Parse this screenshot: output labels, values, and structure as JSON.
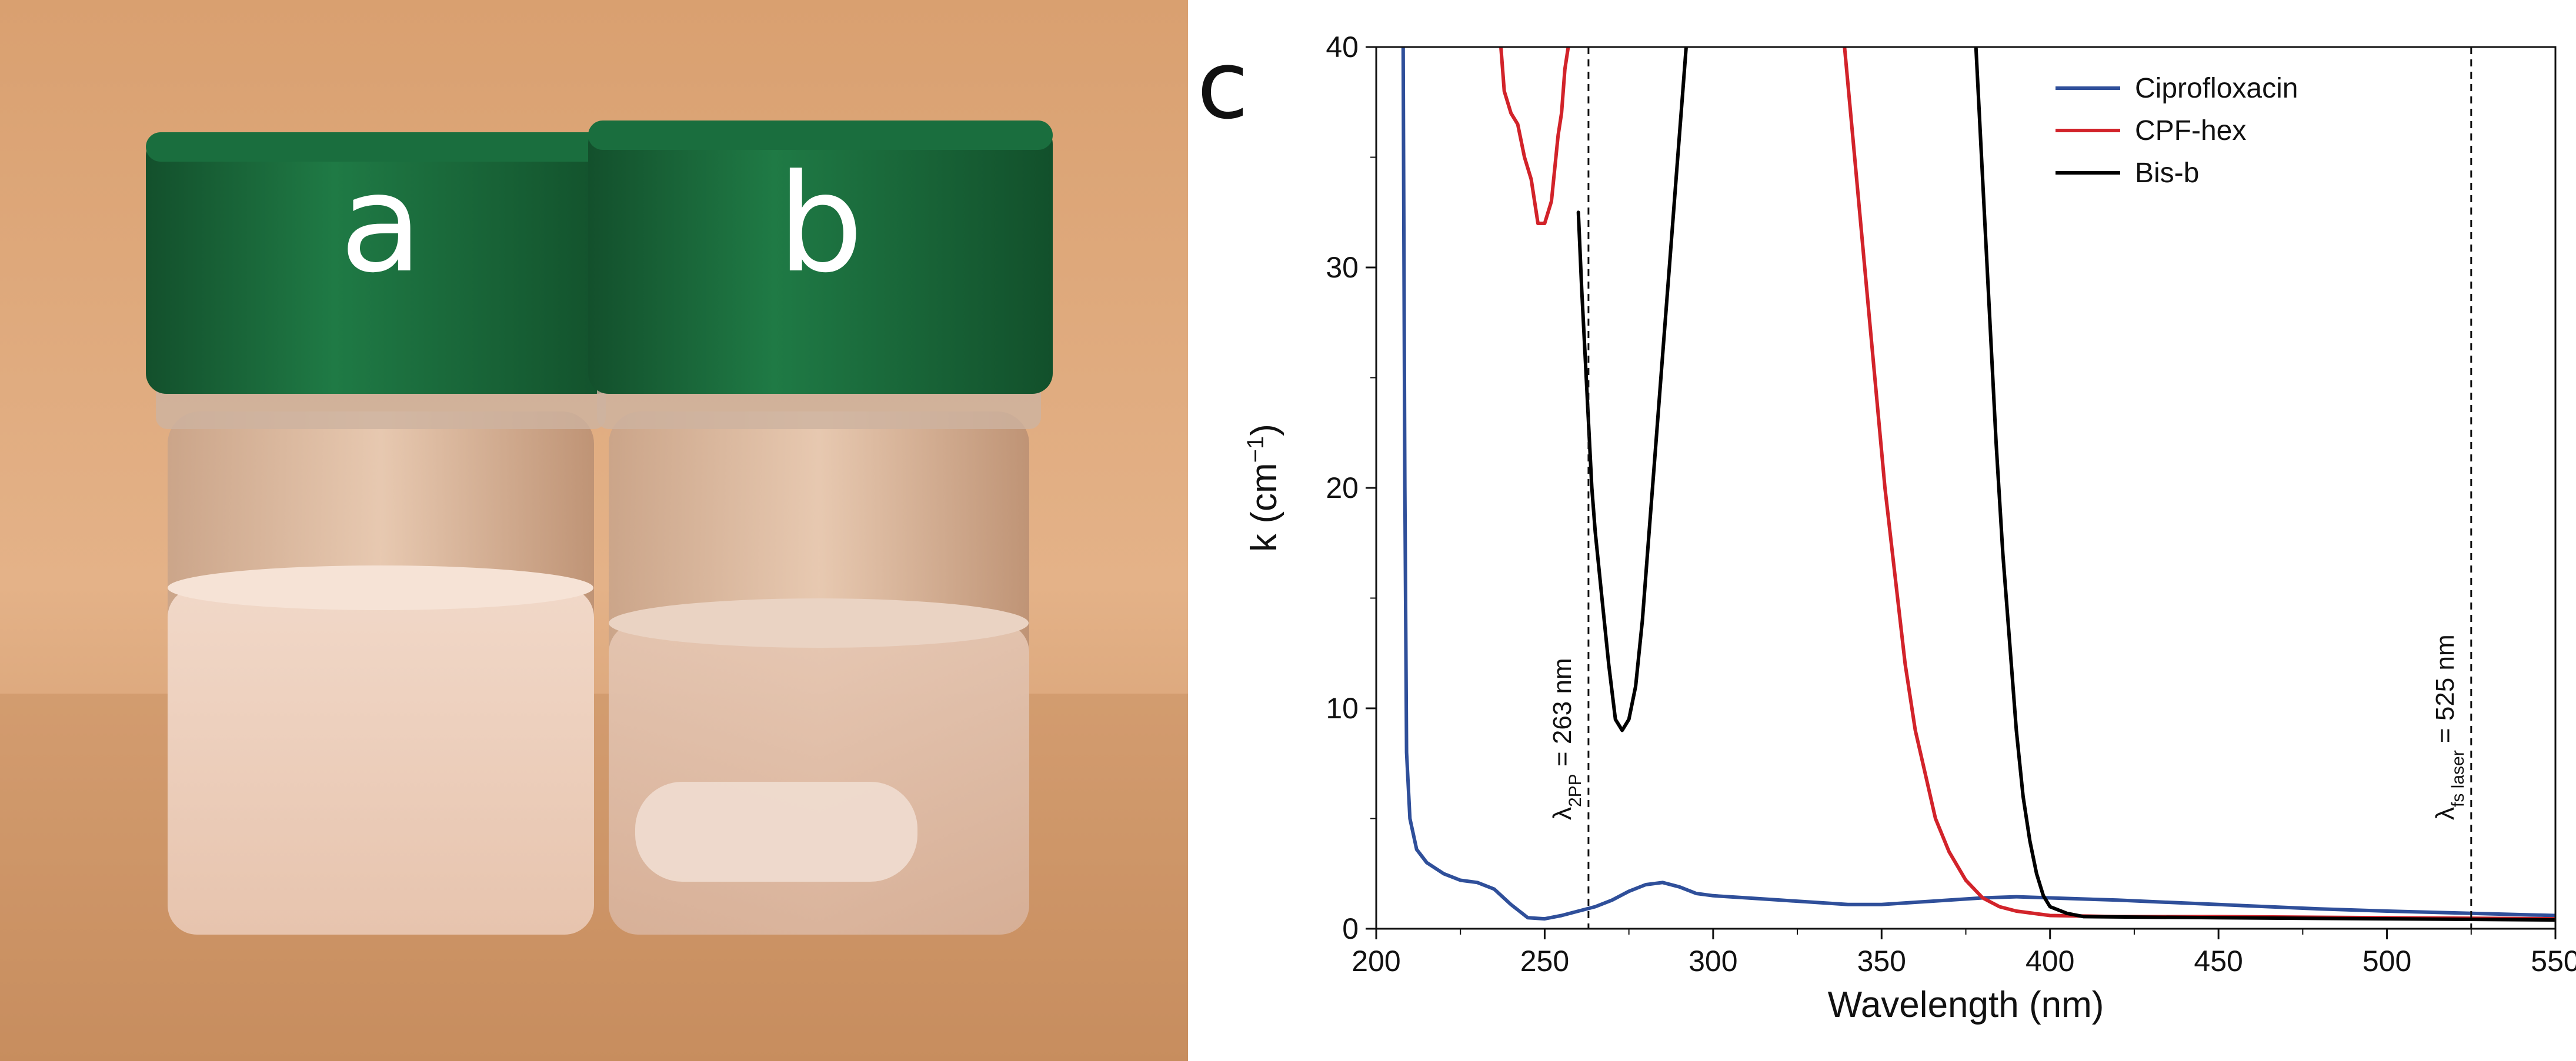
{
  "photo": {
    "vial_a_label": "a",
    "vial_b_label": "b"
  },
  "panel_label": "c",
  "colors": {
    "ciprofloxacin": "#2f4f9a",
    "cpf_hex": "#d2232a",
    "bis_b": "#000000",
    "cap": "#1c6b3d"
  },
  "chart_data": {
    "type": "line",
    "xlabel": "Wavelength (nm)",
    "ylabel_main": "k (cm",
    "ylabel_sup": "−1",
    "ylabel_close": ")",
    "xlim": [
      200,
      550
    ],
    "ylim": [
      0,
      40
    ],
    "xticks": [
      200,
      250,
      300,
      350,
      400,
      450,
      500,
      550
    ],
    "yticks": [
      0,
      10,
      20,
      30,
      40
    ],
    "legend_position": "top-right",
    "series": [
      {
        "name": "Ciprofloxacin",
        "color": "#2f4f9a",
        "points": [
          [
            208,
            40
          ],
          [
            208.5,
            20
          ],
          [
            209,
            8
          ],
          [
            210,
            5
          ],
          [
            212,
            3.6
          ],
          [
            215,
            3
          ],
          [
            220,
            2.5
          ],
          [
            225,
            2.2
          ],
          [
            230,
            2.1
          ],
          [
            235,
            1.8
          ],
          [
            240,
            1.1
          ],
          [
            245,
            0.5
          ],
          [
            250,
            0.45
          ],
          [
            255,
            0.6
          ],
          [
            260,
            0.8
          ],
          [
            265,
            1.0
          ],
          [
            270,
            1.3
          ],
          [
            275,
            1.7
          ],
          [
            280,
            2.0
          ],
          [
            285,
            2.1
          ],
          [
            290,
            1.9
          ],
          [
            295,
            1.6
          ],
          [
            300,
            1.5
          ],
          [
            310,
            1.4
          ],
          [
            320,
            1.3
          ],
          [
            330,
            1.2
          ],
          [
            340,
            1.1
          ],
          [
            350,
            1.1
          ],
          [
            360,
            1.2
          ],
          [
            370,
            1.3
          ],
          [
            380,
            1.4
          ],
          [
            390,
            1.45
          ],
          [
            400,
            1.4
          ],
          [
            420,
            1.3
          ],
          [
            450,
            1.1
          ],
          [
            480,
            0.9
          ],
          [
            500,
            0.8
          ],
          [
            525,
            0.7
          ],
          [
            550,
            0.6
          ]
        ]
      },
      {
        "name": "CPF-hex",
        "color": "#d2232a",
        "points": [
          [
            237,
            40
          ],
          [
            238,
            38
          ],
          [
            240,
            37
          ],
          [
            242,
            36.5
          ],
          [
            244,
            35
          ],
          [
            246,
            34
          ],
          [
            248,
            32
          ],
          [
            250,
            32
          ],
          [
            252,
            33
          ],
          [
            254,
            36
          ],
          [
            255,
            37
          ],
          [
            256,
            39
          ],
          [
            257,
            40
          ],
          null,
          [
            339,
            40
          ],
          [
            342,
            35
          ],
          [
            345,
            30
          ],
          [
            348,
            25
          ],
          [
            351,
            20
          ],
          [
            354,
            16
          ],
          [
            357,
            12
          ],
          [
            360,
            9
          ],
          [
            363,
            7
          ],
          [
            366,
            5
          ],
          [
            370,
            3.5
          ],
          [
            375,
            2.2
          ],
          [
            380,
            1.4
          ],
          [
            385,
            1.0
          ],
          [
            390,
            0.8
          ],
          [
            400,
            0.6
          ],
          [
            420,
            0.55
          ],
          [
            450,
            0.55
          ],
          [
            500,
            0.5
          ],
          [
            550,
            0.45
          ]
        ]
      },
      {
        "name": "Bis-b",
        "color": "#000000",
        "points": [
          [
            260,
            32.5
          ],
          [
            261,
            29
          ],
          [
            262,
            26
          ],
          [
            263,
            23
          ],
          [
            264,
            20
          ],
          [
            265,
            18
          ],
          [
            267,
            15
          ],
          [
            269,
            12
          ],
          [
            271,
            9.5
          ],
          [
            273,
            9
          ],
          [
            275,
            9.5
          ],
          [
            277,
            11
          ],
          [
            279,
            14
          ],
          [
            281,
            18
          ],
          [
            283,
            22
          ],
          [
            285,
            26
          ],
          [
            287,
            30
          ],
          [
            289,
            34
          ],
          [
            291,
            38
          ],
          [
            292,
            40
          ],
          null,
          [
            378,
            40
          ],
          [
            380,
            34
          ],
          [
            382,
            28
          ],
          [
            384,
            22
          ],
          [
            386,
            17
          ],
          [
            388,
            13
          ],
          [
            390,
            9
          ],
          [
            392,
            6
          ],
          [
            394,
            4
          ],
          [
            396,
            2.5
          ],
          [
            398,
            1.5
          ],
          [
            400,
            1.0
          ],
          [
            405,
            0.7
          ],
          [
            410,
            0.55
          ],
          [
            450,
            0.5
          ],
          [
            500,
            0.45
          ],
          [
            550,
            0.4
          ]
        ]
      }
    ],
    "vlines": [
      {
        "x": 263,
        "label_main": "λ",
        "label_sub": "2PP",
        "label_rest": " = 263 nm"
      },
      {
        "x": 525,
        "label_main": "λ",
        "label_sub": "fs laser",
        "label_rest": " = 525 nm"
      }
    ]
  }
}
